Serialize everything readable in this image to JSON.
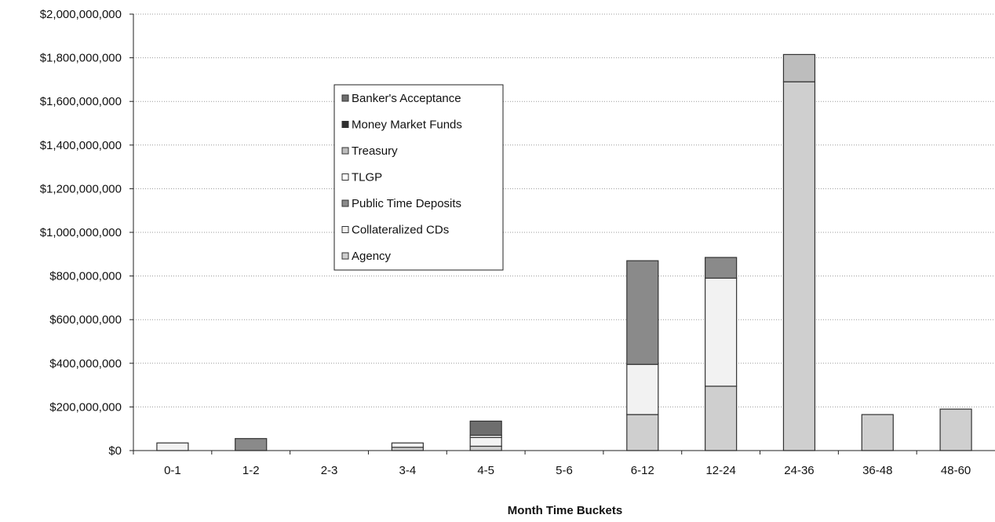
{
  "chart_data": {
    "type": "bar",
    "stacked": true,
    "title": "",
    "xlabel": "Month Time Buckets",
    "ylabel": "",
    "ylim": [
      0,
      2000000000
    ],
    "y_ticks": [
      0,
      200000000,
      400000000,
      600000000,
      800000000,
      1000000000,
      1200000000,
      1400000000,
      1600000000,
      1800000000,
      2000000000
    ],
    "y_tick_labels": [
      "$0",
      "$200,000,000",
      "$400,000,000",
      "$600,000,000",
      "$800,000,000",
      "$1,000,000,000",
      "$1,200,000,000",
      "$1,400,000,000",
      "$1,600,000,000",
      "$1,800,000,000",
      "$2,000,000,000"
    ],
    "grid": true,
    "legend_position": "upper-left",
    "categories": [
      "0-1",
      "1-2",
      "2-3",
      "3-4",
      "4-5",
      "5-6",
      "6-12",
      "12-24",
      "24-36",
      "36-48",
      "48-60"
    ],
    "series": [
      {
        "name": "Agency",
        "color": "#cfcfcf",
        "values": [
          0,
          0,
          0,
          15000000,
          20000000,
          0,
          165000000,
          295000000,
          1690000000,
          165000000,
          190000000
        ]
      },
      {
        "name": "Collateralized CDs",
        "color": "#f2f2f2",
        "values": [
          35000000,
          0,
          0,
          20000000,
          40000000,
          0,
          230000000,
          495000000,
          0,
          0,
          0
        ]
      },
      {
        "name": "Public Time Deposits",
        "color": "#8a8a8a",
        "values": [
          0,
          55000000,
          0,
          0,
          0,
          0,
          475000000,
          95000000,
          0,
          0,
          0
        ]
      },
      {
        "name": "TLGP",
        "color": "#ffffff",
        "values": [
          0,
          0,
          0,
          0,
          10000000,
          0,
          0,
          0,
          0,
          0,
          0
        ]
      },
      {
        "name": "Treasury",
        "color": "#bdbdbd",
        "values": [
          0,
          0,
          0,
          0,
          0,
          0,
          0,
          0,
          125000000,
          0,
          0
        ]
      },
      {
        "name": "Money Market Funds",
        "color": "#2f2f2f",
        "values": [
          0,
          0,
          0,
          0,
          0,
          0,
          0,
          0,
          0,
          0,
          0
        ]
      },
      {
        "name": "Banker's Acceptance",
        "color": "#6e6e6e",
        "values": [
          0,
          0,
          0,
          0,
          65000000,
          0,
          0,
          0,
          0,
          0,
          0
        ]
      }
    ],
    "legend_order": [
      "Banker's Acceptance",
      "Money Market Funds",
      "Treasury",
      "TLGP",
      "Public Time Deposits",
      "Collateralized CDs",
      "Agency"
    ]
  }
}
